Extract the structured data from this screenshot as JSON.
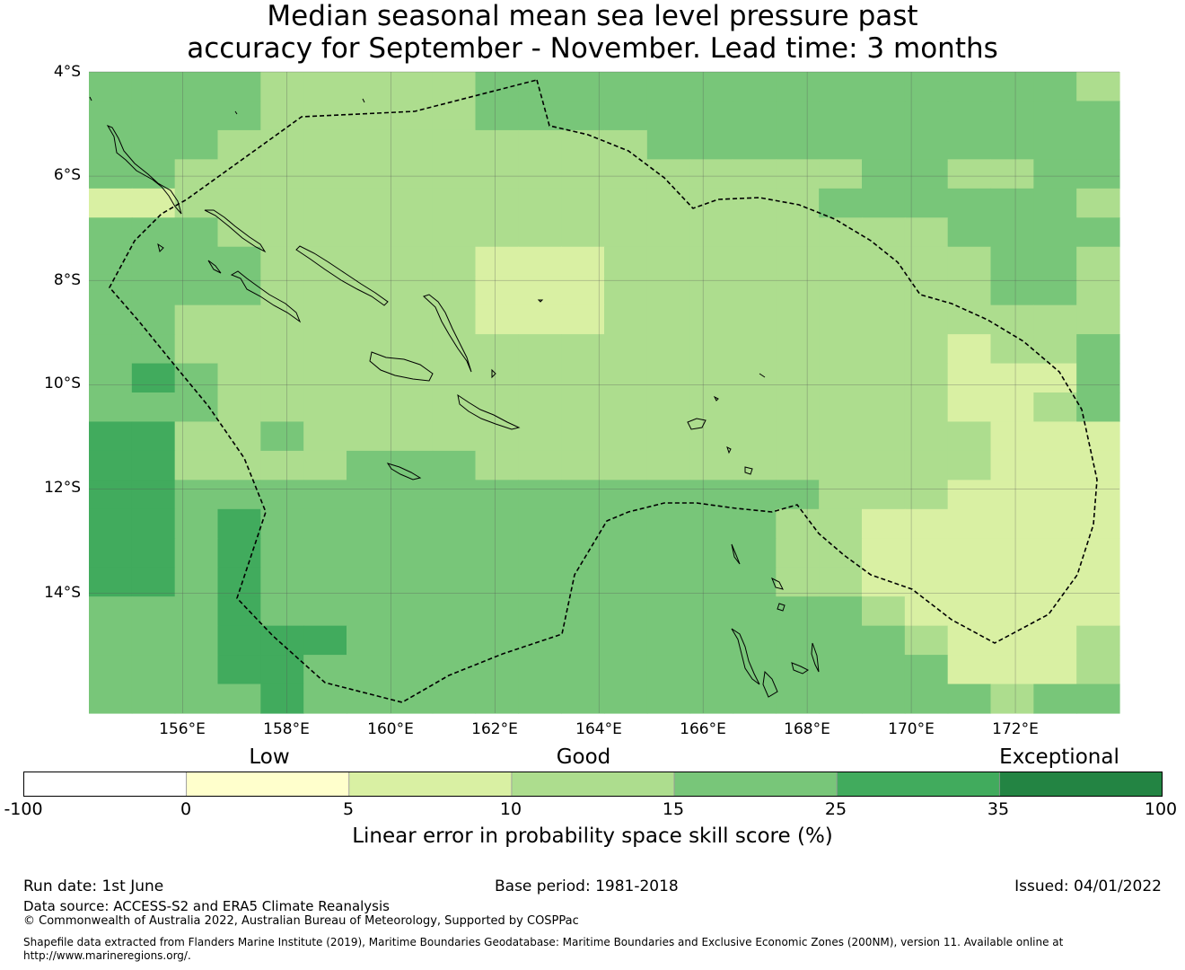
{
  "title": {
    "line1": "Median seasonal mean sea level pressure past",
    "line2": "accuracy for September - November. Lead time: 3 months"
  },
  "map": {
    "lat_labels": [
      "4°S",
      "6°S",
      "8°S",
      "10°S",
      "12°S",
      "14°S"
    ],
    "lon_labels": [
      "156°E",
      "158°E",
      "160°E",
      "162°E",
      "164°E",
      "166°E",
      "168°E",
      "170°E",
      "172°E"
    ],
    "lat_range": [
      -16.3,
      -4.0
    ],
    "lon_range": [
      154.2,
      174.0
    ],
    "grid": true,
    "eez_boundary": "dashed",
    "level_colors": {
      "0": "#ffffcc",
      "1": "#d9f0a3",
      "2": "#addd8e",
      "3": "#78c679",
      "4": "#41ab5d",
      "5": "#238443"
    },
    "grid_cells_cols": 24,
    "grid_cells_rows": 22,
    "levels": [
      "333322222333333333333332",
      "333322222333333333333333",
      "333222222222233333333333",
      "332222222222222222332233",
      "112222222222222223333332",
      "333222222222222222223333",
      "333322222111222222222332",
      "333322222111222222222332",
      "332222222111222222222222",
      "332222222222222222221223",
      "343222222222222222221113",
      "333222222222222222221123",
      "442232222222222222222111",
      "442222333222222222222111",
      "443333333333333332221111",
      "443433333333333322111111",
      "443433333333333322111111",
      "443433333333333322111111",
      "333433333333333333211111",
      "333444333333333333321112",
      "333443333333333333331112",
      "333343333333333333333233"
    ]
  },
  "colorbar": {
    "categories": [
      "Low",
      "Good",
      "Exceptional"
    ],
    "ticks": [
      "-100",
      "0",
      "5",
      "10",
      "15",
      "25",
      "35",
      "100"
    ],
    "colors": [
      "#ffffff",
      "#ffffcc",
      "#d9f0a3",
      "#addd8e",
      "#78c679",
      "#41ab5d",
      "#238443"
    ],
    "label": "Linear error in probability space skill score (%)"
  },
  "footer": {
    "run_date": "Run date: 1st June",
    "base_period": "Base period: 1981-2018",
    "issued": "Issued: 04/01/2022",
    "data_source": "Data source: ACCESS-S2 and ERA5 Climate Reanalysis",
    "copyright": "© Commonwealth of Australia 2022, Australian Bureau of Meteorology, Supported by COSPPac",
    "shapefile_line1": "Shapefile data extracted from Flanders Marine Institute (2019), Maritime Boundaries Geodatabase: Maritime Boundaries and Exclusive Economic Zones (200NM), version 11. Available online at",
    "shapefile_line2": "http://www.marineregions.org/."
  }
}
